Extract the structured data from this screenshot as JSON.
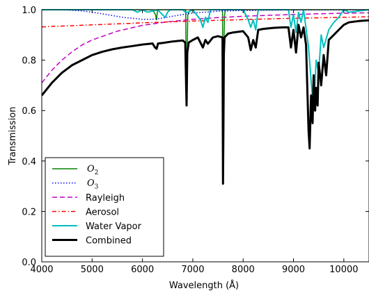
{
  "chart_data": {
    "type": "line",
    "title": "",
    "xlabel": "Wavelength (Å)",
    "ylabel": "Transmission",
    "xlim": [
      4000,
      10500
    ],
    "ylim": [
      0.0,
      1.0
    ],
    "xticks": [
      4000,
      5000,
      6000,
      7000,
      8000,
      9000,
      10000
    ],
    "xtick_labels": [
      "4000",
      "5000",
      "6000",
      "7000",
      "8000",
      "9000",
      "10000"
    ],
    "yticks": [
      0.0,
      0.2,
      0.4,
      0.6,
      0.8,
      1.0
    ],
    "ytick_labels": [
      "0.0",
      "0.2",
      "0.4",
      "0.6",
      "0.8",
      "1.0"
    ],
    "grid": false,
    "legend_position": "bottom-left",
    "series": [
      {
        "name": "O2",
        "legend_label": {
          "base": "O",
          "sub": "2"
        },
        "color": "#008000",
        "style": "solid",
        "x": [
          4000,
          6200,
          6260,
          6280,
          6300,
          6860,
          6868,
          6876,
          6890,
          6900,
          6950,
          7590,
          7600,
          7608,
          7616,
          7630,
          7650,
          8000,
          8500,
          9000,
          9500,
          10000,
          10500
        ],
        "y": [
          1.0,
          1.0,
          0.98,
          0.96,
          1.0,
          1.0,
          0.72,
          0.62,
          0.85,
          0.98,
          1.0,
          1.0,
          0.32,
          0.55,
          0.85,
          0.98,
          1.0,
          1.0,
          1.0,
          1.0,
          1.0,
          1.0,
          1.0
        ]
      },
      {
        "name": "O3",
        "legend_label": {
          "base": "O",
          "sub": "3"
        },
        "color": "#0000ff",
        "style": "dotted",
        "x": [
          4000,
          4500,
          4800,
          5000,
          5200,
          5400,
          5600,
          5800,
          6000,
          6200,
          6400,
          6600,
          6800,
          7000,
          7500,
          8000,
          9000,
          10000,
          10500
        ],
        "y": [
          1.0,
          0.999,
          0.995,
          0.99,
          0.984,
          0.977,
          0.97,
          0.966,
          0.962,
          0.962,
          0.967,
          0.974,
          0.981,
          0.987,
          0.994,
          0.997,
          0.999,
          1.0,
          1.0
        ]
      },
      {
        "name": "Rayleigh",
        "color": "#bf00bf",
        "style": "dashed",
        "x": [
          4000,
          4200,
          4400,
          4600,
          4800,
          5000,
          5500,
          6000,
          6500,
          7000,
          7500,
          8000,
          8500,
          9000,
          9500,
          10000,
          10500
        ],
        "y": [
          0.71,
          0.76,
          0.8,
          0.833,
          0.86,
          0.88,
          0.915,
          0.938,
          0.952,
          0.962,
          0.969,
          0.974,
          0.978,
          0.981,
          0.984,
          0.986,
          0.988
        ]
      },
      {
        "name": "Aerosol",
        "color": "#ff0000",
        "style": "dashdot",
        "x": [
          4000,
          5000,
          6000,
          7000,
          8000,
          9000,
          10000,
          10500
        ],
        "y": [
          0.932,
          0.94,
          0.948,
          0.955,
          0.961,
          0.966,
          0.97,
          0.972
        ]
      },
      {
        "name": "Water Vapor",
        "color": "#00bfbf",
        "style": "solid",
        "x": [
          4000,
          5800,
          5900,
          6000,
          6100,
          6300,
          6450,
          6500,
          6550,
          6600,
          6800,
          6850,
          6900,
          7000,
          7150,
          7200,
          7250,
          7300,
          7350,
          8000,
          8100,
          8150,
          8200,
          8250,
          8300,
          8900,
          8950,
          9000,
          9050,
          9100,
          9150,
          9200,
          9300,
          9350,
          9400,
          9450,
          9500,
          9550,
          9600,
          9700,
          9800,
          9900,
          10000,
          10100,
          10500
        ],
        "y": [
          1.0,
          1.0,
          0.99,
          1.0,
          0.99,
          1.0,
          0.97,
          0.99,
          1.0,
          1.0,
          1.0,
          0.99,
          0.99,
          1.0,
          0.96,
          0.93,
          0.97,
          0.95,
          1.0,
          1.0,
          0.96,
          0.93,
          0.96,
          0.92,
          1.0,
          1.0,
          0.93,
          0.98,
          0.91,
          0.99,
          0.95,
          1.0,
          0.85,
          0.72,
          0.6,
          0.8,
          0.75,
          0.9,
          0.85,
          0.92,
          0.95,
          0.97,
          1.0,
          0.99,
          1.0
        ]
      },
      {
        "name": "Combined",
        "color": "#000000",
        "style": "solid",
        "x": [
          4000,
          4200,
          4400,
          4600,
          4800,
          5000,
          5200,
          5400,
          5600,
          5800,
          6000,
          6200,
          6250,
          6280,
          6310,
          6400,
          6600,
          6800,
          6850,
          6868,
          6876,
          6890,
          6920,
          7000,
          7100,
          7150,
          7200,
          7250,
          7300,
          7400,
          7500,
          7590,
          7600,
          7608,
          7616,
          7630,
          7700,
          7800,
          8000,
          8100,
          8150,
          8200,
          8250,
          8300,
          8400,
          8600,
          8800,
          8900,
          8950,
          9000,
          9050,
          9100,
          9150,
          9200,
          9250,
          9300,
          9320,
          9350,
          9380,
          9400,
          9430,
          9450,
          9480,
          9500,
          9550,
          9600,
          9650,
          9700,
          9800,
          9900,
          10000,
          10100,
          10300,
          10500
        ],
        "y": [
          0.66,
          0.71,
          0.75,
          0.78,
          0.8,
          0.82,
          0.833,
          0.843,
          0.85,
          0.856,
          0.862,
          0.866,
          0.85,
          0.845,
          0.866,
          0.868,
          0.874,
          0.878,
          0.87,
          0.69,
          0.62,
          0.83,
          0.87,
          0.88,
          0.89,
          0.87,
          0.85,
          0.88,
          0.865,
          0.89,
          0.895,
          0.89,
          0.31,
          0.53,
          0.82,
          0.89,
          0.905,
          0.91,
          0.915,
          0.89,
          0.84,
          0.88,
          0.85,
          0.92,
          0.924,
          0.928,
          0.93,
          0.93,
          0.85,
          0.92,
          0.83,
          0.94,
          0.89,
          0.93,
          0.86,
          0.52,
          0.45,
          0.66,
          0.55,
          0.74,
          0.6,
          0.69,
          0.62,
          0.79,
          0.7,
          0.82,
          0.74,
          0.88,
          0.9,
          0.92,
          0.94,
          0.95,
          0.955,
          0.958
        ]
      }
    ]
  }
}
